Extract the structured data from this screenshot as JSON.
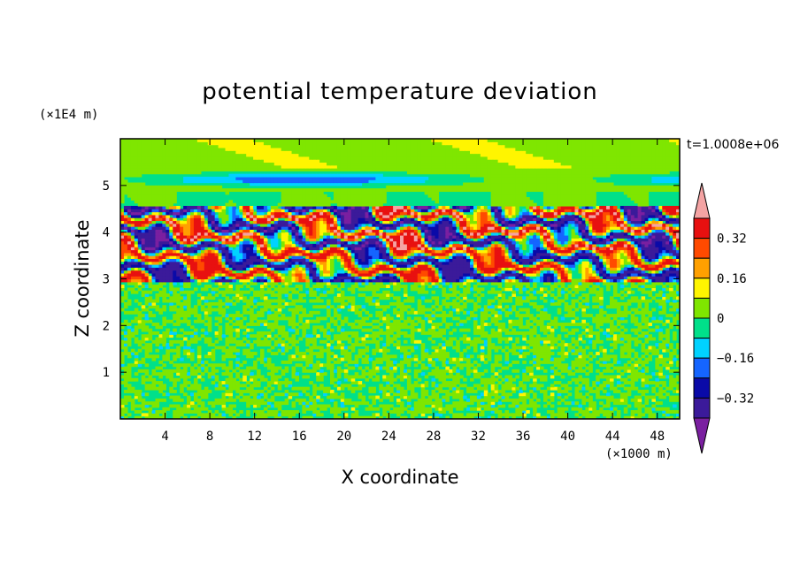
{
  "chart_data": {
    "type": "heatmap",
    "title": "potential temperature deviation",
    "xlabel": "X coordinate",
    "ylabel": "Z coordinate",
    "x_unit": "(×1000 m)",
    "y_unit": "(×1E4 m)",
    "time_label": "t=1.0008e+06",
    "xlim": [
      0,
      50
    ],
    "ylim": [
      0,
      6
    ],
    "x_ticks": [
      4,
      8,
      12,
      16,
      20,
      24,
      28,
      32,
      36,
      40,
      44,
      48
    ],
    "y_ticks": [
      1,
      2,
      3,
      4,
      5
    ],
    "colorbar": {
      "levels": [
        -0.4,
        -0.32,
        -0.24,
        -0.16,
        -0.08,
        0,
        0.08,
        0.16,
        0.24,
        0.32,
        0.4
      ],
      "labels": [
        "0.32",
        "0.16",
        "0",
        "−0.16",
        "−0.32"
      ],
      "label_values": [
        0.32,
        0.16,
        0,
        -0.16,
        -0.32
      ],
      "colors": [
        "#7a1fa0",
        "#3b1a9a",
        "#0a0aa8",
        "#1565ff",
        "#00d2ff",
        "#00e08a",
        "#7fe600",
        "#fff500",
        "#ffa000",
        "#ff4a00",
        "#e81010",
        "#f4a3a3"
      ]
    },
    "layers": [
      {
        "z": [
          0,
          2.95
        ],
        "value": 0,
        "description_level": "near-zero noise"
      },
      {
        "z": [
          2.9,
          3.6
        ],
        "value": 0.28,
        "description_level": "mixed strong"
      },
      {
        "z": [
          3.6,
          4.5
        ],
        "value": 0.3,
        "description_level": "mixed strong"
      },
      {
        "z": [
          4.9,
          5.3
        ],
        "value": -0.15,
        "description_level": "weak negative"
      },
      {
        "z": [
          5.3,
          6.0
        ],
        "value": 0.05,
        "description_level": "weak"
      }
    ]
  }
}
